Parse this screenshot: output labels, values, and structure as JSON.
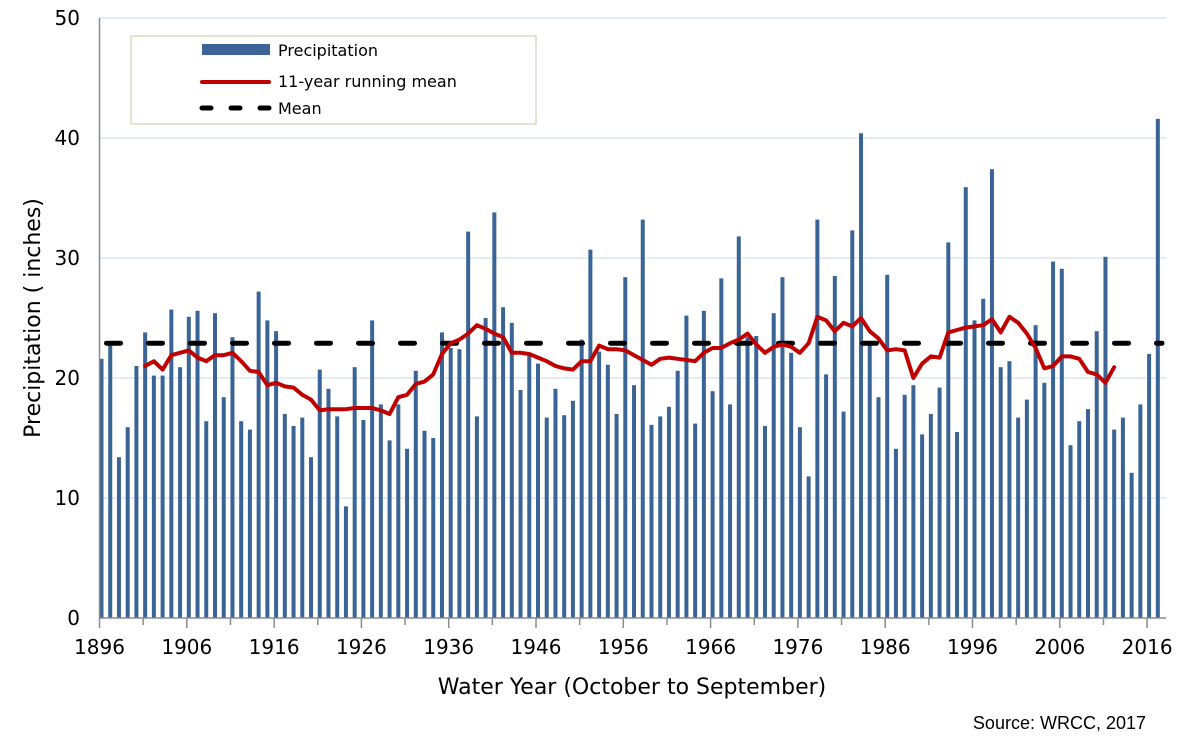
{
  "chart_data": {
    "type": "bar",
    "title": "",
    "xlabel": "Water Year (October to September)",
    "ylabel": "Precipitation ( inches)",
    "ylim": [
      0,
      50
    ],
    "yticks": [
      "0",
      "10",
      "20",
      "30",
      "40",
      "50"
    ],
    "ytick_values": [
      0,
      10,
      20,
      30,
      40,
      50
    ],
    "xticks": [
      "1896",
      "1906",
      "1916",
      "1926",
      "1936",
      "1946",
      "1956",
      "1966",
      "1976",
      "1986",
      "1996",
      "2006",
      "2016"
    ],
    "x_start_year": 1896,
    "x_end_year": 2017,
    "grid": "horizontal",
    "legend_position": "top-left",
    "legend": [
      {
        "label": "Precipitation",
        "kind": "bar",
        "color": "#3a6496"
      },
      {
        "label": "11-year running mean",
        "kind": "line",
        "color": "#c00000"
      },
      {
        "label": "Mean",
        "kind": "dashed-line",
        "color": "#000000"
      }
    ],
    "series": [
      {
        "name": "Precipitation",
        "type": "bar",
        "color": "#3a6496",
        "values": [
          21.6,
          22.9,
          13.4,
          15.9,
          21.0,
          23.8,
          20.2,
          20.2,
          25.7,
          20.9,
          25.1,
          25.6,
          16.4,
          25.4,
          18.4,
          23.4,
          16.4,
          15.7,
          27.2,
          24.8,
          23.9,
          17.0,
          16.0,
          16.7,
          13.4,
          20.7,
          19.1,
          16.8,
          9.3,
          20.9,
          16.5,
          24.8,
          17.8,
          14.8,
          17.8,
          14.1,
          20.6,
          15.6,
          15.0,
          23.8,
          22.5,
          22.4,
          32.2,
          16.8,
          25.0,
          33.8,
          25.9,
          24.6,
          19.0,
          22.1,
          21.2,
          16.7,
          19.1,
          16.9,
          18.1,
          23.2,
          30.7,
          22.2,
          21.1,
          17.0,
          28.4,
          19.4,
          33.2,
          16.1,
          16.8,
          17.6,
          20.6,
          25.2,
          16.2,
          25.6,
          18.9,
          28.3,
          17.8,
          31.8,
          23.4,
          23.5,
          16.0,
          25.4,
          28.4,
          22.1,
          15.9,
          11.8,
          33.2,
          20.3,
          28.5,
          17.2,
          32.3,
          40.4,
          22.9,
          18.4,
          28.6,
          14.1,
          18.6,
          19.4,
          15.3,
          17.0,
          19.2,
          31.3,
          15.5,
          35.9,
          24.8,
          26.6,
          37.4,
          20.9,
          21.4,
          16.7,
          18.2,
          24.4,
          19.6,
          29.7,
          29.1,
          14.4,
          16.4,
          17.4,
          23.9,
          30.1,
          15.7,
          16.7,
          12.1,
          17.8,
          22.0,
          41.6
        ]
      },
      {
        "name": "11-year running mean",
        "type": "line",
        "color": "#c00000",
        "start_year": 1901,
        "values": [
          21.0,
          21.4,
          20.7,
          21.9,
          22.1,
          22.3,
          21.7,
          21.4,
          21.9,
          21.9,
          22.1,
          21.4,
          20.6,
          20.5,
          19.4,
          19.6,
          19.3,
          19.2,
          18.6,
          18.2,
          17.3,
          17.4,
          17.4,
          17.4,
          17.5,
          17.5,
          17.5,
          17.3,
          17.0,
          18.4,
          18.6,
          19.5,
          19.7,
          20.3,
          22.0,
          22.9,
          23.2,
          23.7,
          24.4,
          24.1,
          23.7,
          23.4,
          22.1,
          22.1,
          22.0,
          21.7,
          21.4,
          21.0,
          20.8,
          20.7,
          21.4,
          21.4,
          22.7,
          22.4,
          22.4,
          22.3,
          21.9,
          21.5,
          21.1,
          21.6,
          21.7,
          21.6,
          21.5,
          21.4,
          22.1,
          22.5,
          22.5,
          22.9,
          23.2,
          23.7,
          22.8,
          22.1,
          22.6,
          22.8,
          22.6,
          22.1,
          22.9,
          25.1,
          24.8,
          23.9,
          24.6,
          24.3,
          25.0,
          23.9,
          23.3,
          22.3,
          22.4,
          22.3,
          20.0,
          21.2,
          21.8,
          21.7,
          23.8,
          24.0,
          24.2,
          24.3,
          24.4,
          24.9,
          23.8,
          25.1,
          24.6,
          23.7,
          22.5,
          20.8,
          21.0,
          21.8,
          21.8,
          21.6,
          20.5,
          20.3,
          19.6,
          20.9
        ]
      },
      {
        "name": "Mean",
        "type": "hline",
        "color": "#000000",
        "value": 22.9
      }
    ]
  },
  "source_text": "Source: WRCC, 2017"
}
